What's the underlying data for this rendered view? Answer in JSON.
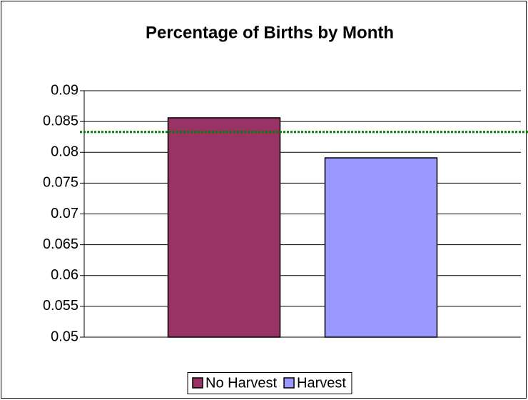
{
  "chart_data": {
    "type": "bar",
    "title": "Percentage of Births by Month",
    "categories": [
      null
    ],
    "series": [
      {
        "name": "No Harvest",
        "color": "#993366",
        "values": [
          0.0856
        ]
      },
      {
        "name": "Harvest",
        "color": "#9999ff",
        "values": [
          0.0791
        ]
      }
    ],
    "reference_line": {
      "value": 0.0833,
      "color": "#008000",
      "style": "dotted"
    },
    "ylim": [
      0.05,
      0.09
    ],
    "yticks": [
      0.05,
      0.055,
      0.06,
      0.065,
      0.07,
      0.075,
      0.08,
      0.085,
      0.09
    ],
    "grid": true,
    "legend": "bottom"
  }
}
